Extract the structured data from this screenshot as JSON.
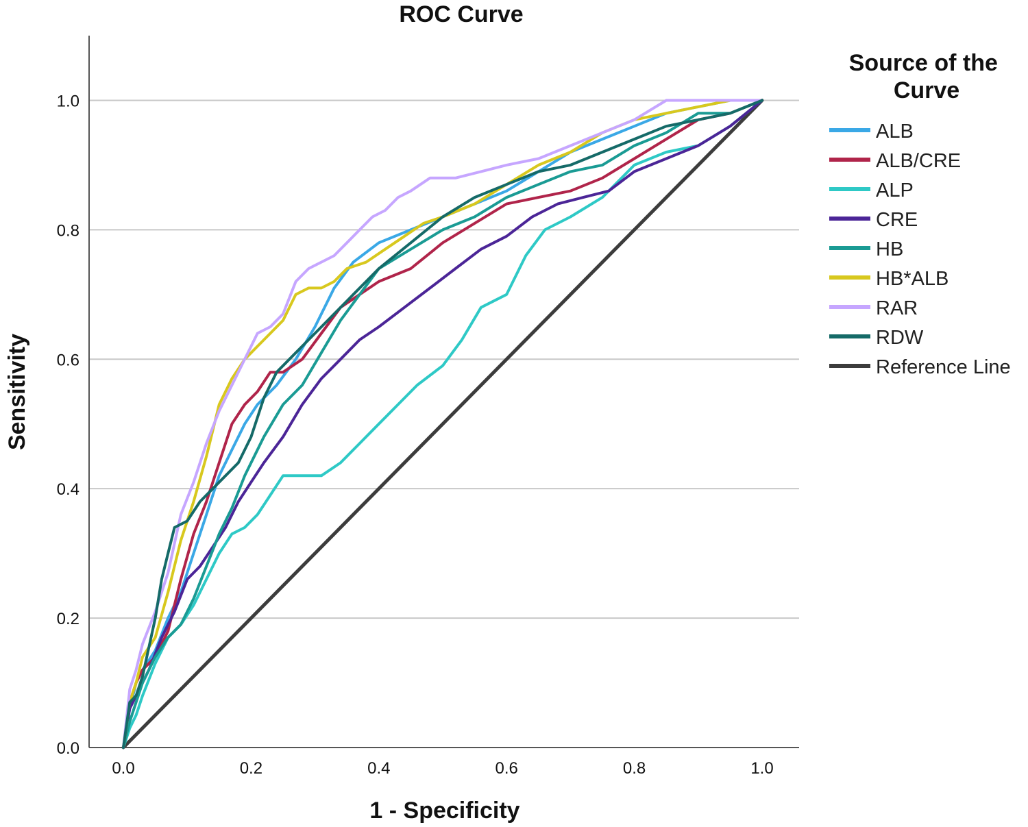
{
  "chart_data": {
    "type": "line",
    "title": "ROC Curve",
    "xlabel": "1 - Specificity",
    "ylabel": "Sensitivity",
    "xlim": [
      0.0,
      1.0
    ],
    "ylim": [
      0.0,
      1.1
    ],
    "xticks": [
      0.0,
      0.2,
      0.4,
      0.6,
      0.8,
      1.0
    ],
    "yticks": [
      0.0,
      0.2,
      0.4,
      0.6,
      0.8,
      1.0
    ],
    "xtick_labels": [
      "0.0",
      "0.2",
      "0.4",
      "0.6",
      "0.8",
      "1.0"
    ],
    "ytick_labels": [
      "0.0",
      "0.2",
      "0.4",
      "0.6",
      "0.8",
      "1.0"
    ],
    "grid": "horizontal",
    "legend": {
      "title": "Source of the Curve",
      "position": "right"
    },
    "series": [
      {
        "name": "ALB",
        "color": "#3aa8e6",
        "x": [
          0.0,
          0.01,
          0.02,
          0.03,
          0.05,
          0.07,
          0.09,
          0.11,
          0.13,
          0.15,
          0.17,
          0.19,
          0.21,
          0.24,
          0.27,
          0.3,
          0.33,
          0.36,
          0.4,
          0.45,
          0.5,
          0.55,
          0.6,
          0.65,
          0.7,
          0.75,
          0.8,
          0.85,
          0.9,
          0.95,
          1.0
        ],
        "y": [
          0.0,
          0.06,
          0.1,
          0.12,
          0.15,
          0.2,
          0.24,
          0.3,
          0.36,
          0.42,
          0.46,
          0.5,
          0.53,
          0.56,
          0.6,
          0.65,
          0.71,
          0.75,
          0.78,
          0.8,
          0.82,
          0.84,
          0.86,
          0.89,
          0.92,
          0.94,
          0.96,
          0.98,
          0.99,
          1.0,
          1.0
        ]
      },
      {
        "name": "ALB/CRE",
        "color": "#b0244a",
        "x": [
          0.0,
          0.01,
          0.02,
          0.03,
          0.05,
          0.07,
          0.09,
          0.11,
          0.13,
          0.15,
          0.17,
          0.19,
          0.21,
          0.23,
          0.25,
          0.28,
          0.31,
          0.34,
          0.37,
          0.4,
          0.45,
          0.5,
          0.55,
          0.6,
          0.65,
          0.7,
          0.75,
          0.8,
          0.85,
          0.9,
          0.95,
          1.0
        ],
        "y": [
          0.0,
          0.07,
          0.1,
          0.12,
          0.14,
          0.18,
          0.26,
          0.33,
          0.38,
          0.44,
          0.5,
          0.53,
          0.55,
          0.58,
          0.58,
          0.6,
          0.64,
          0.68,
          0.7,
          0.72,
          0.74,
          0.78,
          0.81,
          0.84,
          0.85,
          0.86,
          0.88,
          0.91,
          0.94,
          0.97,
          0.98,
          1.0
        ]
      },
      {
        "name": "ALP",
        "color": "#2ec9c6",
        "x": [
          0.0,
          0.01,
          0.02,
          0.03,
          0.05,
          0.07,
          0.09,
          0.11,
          0.13,
          0.15,
          0.17,
          0.19,
          0.21,
          0.23,
          0.25,
          0.28,
          0.31,
          0.34,
          0.37,
          0.4,
          0.43,
          0.46,
          0.5,
          0.53,
          0.56,
          0.6,
          0.63,
          0.66,
          0.7,
          0.75,
          0.8,
          0.85,
          0.9,
          0.95,
          1.0
        ],
        "y": [
          0.0,
          0.03,
          0.05,
          0.08,
          0.13,
          0.17,
          0.19,
          0.22,
          0.26,
          0.3,
          0.33,
          0.34,
          0.36,
          0.39,
          0.42,
          0.42,
          0.42,
          0.44,
          0.47,
          0.5,
          0.53,
          0.56,
          0.59,
          0.63,
          0.68,
          0.7,
          0.76,
          0.8,
          0.82,
          0.85,
          0.9,
          0.92,
          0.93,
          0.96,
          1.0
        ]
      },
      {
        "name": "CRE",
        "color": "#4b2597",
        "x": [
          0.0,
          0.01,
          0.02,
          0.04,
          0.06,
          0.08,
          0.1,
          0.12,
          0.14,
          0.16,
          0.18,
          0.2,
          0.22,
          0.25,
          0.28,
          0.31,
          0.34,
          0.37,
          0.4,
          0.44,
          0.48,
          0.52,
          0.56,
          0.6,
          0.64,
          0.68,
          0.72,
          0.76,
          0.8,
          0.85,
          0.9,
          0.95,
          1.0
        ],
        "y": [
          0.0,
          0.06,
          0.08,
          0.12,
          0.17,
          0.21,
          0.26,
          0.28,
          0.31,
          0.34,
          0.38,
          0.41,
          0.44,
          0.48,
          0.53,
          0.57,
          0.6,
          0.63,
          0.65,
          0.68,
          0.71,
          0.74,
          0.77,
          0.79,
          0.82,
          0.84,
          0.85,
          0.86,
          0.89,
          0.91,
          0.93,
          0.96,
          1.0
        ]
      },
      {
        "name": "HB",
        "color": "#1a9b94",
        "x": [
          0.0,
          0.01,
          0.02,
          0.03,
          0.05,
          0.07,
          0.09,
          0.11,
          0.13,
          0.15,
          0.17,
          0.19,
          0.22,
          0.25,
          0.28,
          0.31,
          0.34,
          0.37,
          0.4,
          0.45,
          0.5,
          0.55,
          0.6,
          0.65,
          0.7,
          0.75,
          0.8,
          0.85,
          0.9,
          0.95,
          1.0
        ],
        "y": [
          0.0,
          0.04,
          0.07,
          0.1,
          0.14,
          0.17,
          0.19,
          0.23,
          0.28,
          0.33,
          0.37,
          0.42,
          0.48,
          0.53,
          0.56,
          0.61,
          0.66,
          0.7,
          0.74,
          0.77,
          0.8,
          0.82,
          0.85,
          0.87,
          0.89,
          0.9,
          0.93,
          0.95,
          0.98,
          0.98,
          1.0
        ]
      },
      {
        "name": "HB*ALB",
        "color": "#d8c81e",
        "x": [
          0.0,
          0.01,
          0.02,
          0.03,
          0.05,
          0.07,
          0.09,
          0.11,
          0.13,
          0.15,
          0.17,
          0.19,
          0.21,
          0.23,
          0.25,
          0.27,
          0.29,
          0.31,
          0.33,
          0.35,
          0.38,
          0.41,
          0.44,
          0.47,
          0.5,
          0.55,
          0.6,
          0.65,
          0.7,
          0.75,
          0.8,
          0.85,
          0.9,
          0.95,
          1.0
        ],
        "y": [
          0.0,
          0.07,
          0.1,
          0.14,
          0.17,
          0.24,
          0.32,
          0.38,
          0.45,
          0.53,
          0.57,
          0.6,
          0.62,
          0.64,
          0.66,
          0.7,
          0.71,
          0.71,
          0.72,
          0.74,
          0.75,
          0.77,
          0.79,
          0.81,
          0.82,
          0.84,
          0.87,
          0.9,
          0.92,
          0.95,
          0.97,
          0.98,
          0.99,
          1.0,
          1.0
        ]
      },
      {
        "name": "RAR",
        "color": "#c6a6ff",
        "x": [
          0.0,
          0.01,
          0.02,
          0.03,
          0.05,
          0.07,
          0.09,
          0.11,
          0.13,
          0.15,
          0.17,
          0.19,
          0.21,
          0.23,
          0.25,
          0.27,
          0.29,
          0.31,
          0.33,
          0.35,
          0.37,
          0.39,
          0.41,
          0.43,
          0.45,
          0.48,
          0.52,
          0.56,
          0.6,
          0.65,
          0.7,
          0.75,
          0.8,
          0.85,
          0.9,
          0.95,
          1.0
        ],
        "y": [
          0.0,
          0.09,
          0.12,
          0.16,
          0.21,
          0.27,
          0.36,
          0.41,
          0.47,
          0.52,
          0.56,
          0.6,
          0.64,
          0.65,
          0.67,
          0.72,
          0.74,
          0.75,
          0.76,
          0.78,
          0.8,
          0.82,
          0.83,
          0.85,
          0.86,
          0.88,
          0.88,
          0.89,
          0.9,
          0.91,
          0.93,
          0.95,
          0.97,
          1.0,
          1.0,
          1.0,
          1.0
        ]
      },
      {
        "name": "RDW",
        "color": "#156a68",
        "x": [
          0.0,
          0.01,
          0.02,
          0.03,
          0.05,
          0.06,
          0.07,
          0.08,
          0.1,
          0.12,
          0.14,
          0.16,
          0.18,
          0.2,
          0.22,
          0.24,
          0.27,
          0.3,
          0.33,
          0.36,
          0.4,
          0.45,
          0.5,
          0.55,
          0.6,
          0.65,
          0.7,
          0.75,
          0.8,
          0.85,
          0.9,
          0.95,
          1.0
        ],
        "y": [
          0.0,
          0.07,
          0.08,
          0.11,
          0.2,
          0.26,
          0.3,
          0.34,
          0.35,
          0.38,
          0.4,
          0.42,
          0.44,
          0.48,
          0.54,
          0.58,
          0.61,
          0.64,
          0.67,
          0.7,
          0.74,
          0.78,
          0.82,
          0.85,
          0.87,
          0.89,
          0.9,
          0.92,
          0.94,
          0.96,
          0.97,
          0.98,
          1.0
        ]
      },
      {
        "name": "Reference Line",
        "color": "#3c3c3c",
        "x": [
          0.0,
          1.0
        ],
        "y": [
          0.0,
          1.0
        ]
      }
    ]
  }
}
